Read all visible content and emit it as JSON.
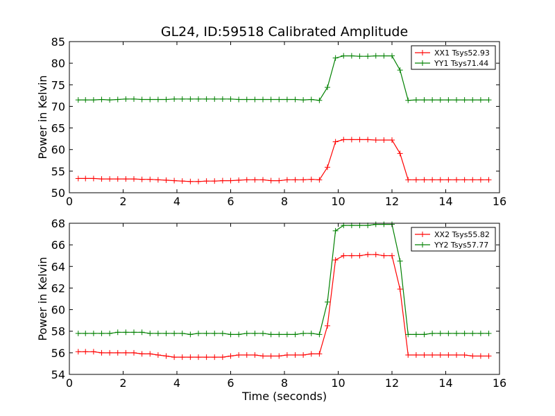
{
  "figure": {
    "title": "GL24, ID:59518 Calibrated Amplitude",
    "xlabel": "Time (seconds)"
  },
  "chart_data": [
    {
      "type": "line",
      "ylabel": "Power in Kelvin",
      "xlim": [
        0,
        16
      ],
      "ylim": [
        50,
        85
      ],
      "xticks": [
        0,
        2,
        4,
        6,
        8,
        10,
        12,
        14,
        16
      ],
      "yticks": [
        50,
        55,
        60,
        65,
        70,
        75,
        80,
        85
      ],
      "legend_position": "top-right",
      "grid": false,
      "x": [
        0.33,
        0.6,
        0.9,
        1.2,
        1.5,
        1.8,
        2.1,
        2.4,
        2.7,
        3.0,
        3.3,
        3.6,
        3.9,
        4.2,
        4.5,
        4.8,
        5.1,
        5.4,
        5.7,
        6.0,
        6.3,
        6.6,
        6.9,
        7.2,
        7.5,
        7.8,
        8.1,
        8.4,
        8.7,
        9.0,
        9.3,
        9.6,
        9.9,
        10.2,
        10.5,
        10.8,
        11.1,
        11.4,
        11.7,
        12.0,
        12.3,
        12.6,
        12.9,
        13.2,
        13.5,
        13.8,
        14.1,
        14.4,
        14.7,
        15.0,
        15.3,
        15.6
      ],
      "series": [
        {
          "name": "XX1 Tsys52.93",
          "color": "#ff0000",
          "values": [
            53.3,
            53.3,
            53.3,
            53.2,
            53.2,
            53.2,
            53.2,
            53.2,
            53.1,
            53.1,
            53.0,
            52.9,
            52.8,
            52.7,
            52.6,
            52.6,
            52.7,
            52.7,
            52.8,
            52.8,
            52.9,
            53.0,
            53.0,
            53.0,
            52.8,
            52.8,
            53.0,
            53.0,
            53.0,
            53.1,
            53.0,
            55.9,
            61.8,
            62.3,
            62.3,
            62.3,
            62.3,
            62.2,
            62.2,
            62.2,
            59.1,
            53.0,
            53.0,
            53.0,
            53.0,
            53.0,
            53.0,
            53.0,
            53.0,
            53.0,
            53.0,
            53.0
          ]
        },
        {
          "name": "YY1 Tsys71.44",
          "color": "#008000",
          "values": [
            71.5,
            71.5,
            71.5,
            71.6,
            71.5,
            71.6,
            71.7,
            71.7,
            71.6,
            71.6,
            71.6,
            71.6,
            71.7,
            71.7,
            71.7,
            71.7,
            71.7,
            71.7,
            71.7,
            71.7,
            71.6,
            71.6,
            71.6,
            71.6,
            71.6,
            71.6,
            71.6,
            71.6,
            71.5,
            71.6,
            71.4,
            74.4,
            81.2,
            81.7,
            81.7,
            81.6,
            81.6,
            81.7,
            81.7,
            81.7,
            78.4,
            71.4,
            71.5,
            71.5,
            71.5,
            71.5,
            71.5,
            71.5,
            71.5,
            71.5,
            71.5,
            71.5
          ]
        }
      ]
    },
    {
      "type": "line",
      "ylabel": "Power in Kelvin",
      "xlim": [
        0,
        16
      ],
      "ylim": [
        54,
        68
      ],
      "xticks": [
        0,
        2,
        4,
        6,
        8,
        10,
        12,
        14,
        16
      ],
      "yticks": [
        54,
        56,
        58,
        60,
        62,
        64,
        66,
        68
      ],
      "legend_position": "top-right",
      "grid": false,
      "x": [
        0.33,
        0.6,
        0.9,
        1.2,
        1.5,
        1.8,
        2.1,
        2.4,
        2.7,
        3.0,
        3.3,
        3.6,
        3.9,
        4.2,
        4.5,
        4.8,
        5.1,
        5.4,
        5.7,
        6.0,
        6.3,
        6.6,
        6.9,
        7.2,
        7.5,
        7.8,
        8.1,
        8.4,
        8.7,
        9.0,
        9.3,
        9.6,
        9.9,
        10.2,
        10.5,
        10.8,
        11.1,
        11.4,
        11.7,
        12.0,
        12.3,
        12.6,
        12.9,
        13.2,
        13.5,
        13.8,
        14.1,
        14.4,
        14.7,
        15.0,
        15.3,
        15.6
      ],
      "series": [
        {
          "name": "XX2 Tsys55.82",
          "color": "#ff0000",
          "values": [
            56.1,
            56.1,
            56.1,
            56.0,
            56.0,
            56.0,
            56.0,
            56.0,
            55.9,
            55.9,
            55.8,
            55.7,
            55.6,
            55.6,
            55.6,
            55.6,
            55.6,
            55.6,
            55.6,
            55.7,
            55.8,
            55.8,
            55.8,
            55.7,
            55.7,
            55.7,
            55.8,
            55.8,
            55.8,
            55.9,
            55.9,
            58.5,
            64.6,
            65.0,
            65.0,
            65.0,
            65.1,
            65.1,
            65.0,
            65.0,
            61.9,
            55.8,
            55.8,
            55.8,
            55.8,
            55.8,
            55.8,
            55.8,
            55.8,
            55.7,
            55.7,
            55.7
          ]
        },
        {
          "name": "YY2 Tsys57.77",
          "color": "#008000",
          "values": [
            57.8,
            57.8,
            57.8,
            57.8,
            57.8,
            57.9,
            57.9,
            57.9,
            57.9,
            57.8,
            57.8,
            57.8,
            57.8,
            57.8,
            57.7,
            57.8,
            57.8,
            57.8,
            57.8,
            57.7,
            57.7,
            57.8,
            57.8,
            57.8,
            57.7,
            57.7,
            57.7,
            57.7,
            57.8,
            57.8,
            57.7,
            60.7,
            67.3,
            67.8,
            67.8,
            67.8,
            67.8,
            67.9,
            67.9,
            67.9,
            64.5,
            57.7,
            57.7,
            57.7,
            57.8,
            57.8,
            57.8,
            57.8,
            57.8,
            57.8,
            57.8,
            57.8
          ]
        }
      ]
    }
  ]
}
